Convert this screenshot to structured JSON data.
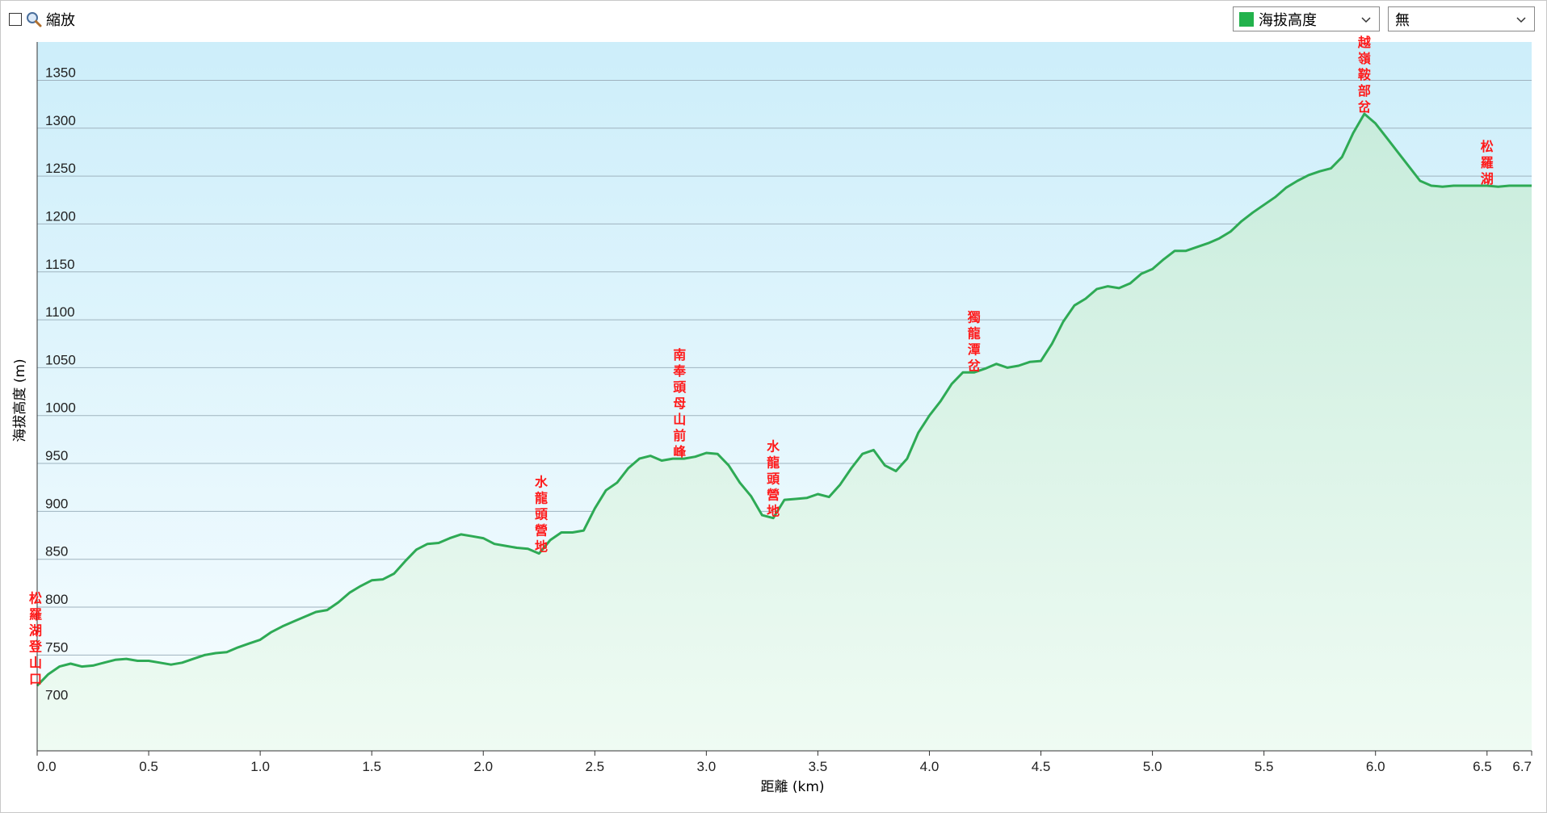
{
  "toolbar": {
    "zoom_label": "縮放",
    "series_select": {
      "value": "海拔高度",
      "color": "#22b24c"
    },
    "second_select": {
      "value": "無"
    }
  },
  "chart_data": {
    "type": "area",
    "title": "",
    "xlabel": "距離 (km)",
    "ylabel": "海拔高度 (m)",
    "xlim": [
      0,
      6.7
    ],
    "ylim": [
      650,
      1390
    ],
    "x_ticks": [
      0.0,
      0.5,
      1.0,
      1.5,
      2.0,
      2.5,
      3.0,
      3.5,
      4.0,
      4.5,
      5.0,
      5.5,
      6.0,
      6.5,
      6.7
    ],
    "x_tick_labels": [
      "0.0",
      "0.5",
      "1.0",
      "1.5",
      "2.0",
      "2.5",
      "3.0",
      "3.5",
      "4.0",
      "4.5",
      "5.0",
      "5.5",
      "6.0",
      "6.5",
      "6.7"
    ],
    "y_ticks": [
      700,
      750,
      800,
      850,
      900,
      950,
      1000,
      1050,
      1100,
      1150,
      1200,
      1250,
      1300,
      1350
    ],
    "y_tick_labels": [
      "700",
      "750",
      "800",
      "850",
      "900",
      "950",
      "1000",
      "1050",
      "1100",
      "1150",
      "1200",
      "1250",
      "1300",
      "1350"
    ],
    "grid": true,
    "line_color": "#2eaa55",
    "series": [
      {
        "name": "海拔高度",
        "x": [
          0.0,
          0.05,
          0.1,
          0.15,
          0.2,
          0.25,
          0.3,
          0.35,
          0.4,
          0.45,
          0.5,
          0.55,
          0.6,
          0.65,
          0.7,
          0.75,
          0.8,
          0.85,
          0.9,
          0.95,
          1.0,
          1.05,
          1.1,
          1.15,
          1.2,
          1.25,
          1.3,
          1.35,
          1.4,
          1.45,
          1.5,
          1.55,
          1.6,
          1.65,
          1.7,
          1.75,
          1.8,
          1.85,
          1.9,
          1.95,
          2.0,
          2.05,
          2.1,
          2.15,
          2.2,
          2.25,
          2.3,
          2.35,
          2.4,
          2.45,
          2.5,
          2.55,
          2.6,
          2.65,
          2.7,
          2.75,
          2.8,
          2.85,
          2.9,
          2.95,
          3.0,
          3.05,
          3.1,
          3.15,
          3.2,
          3.25,
          3.3,
          3.35,
          3.4,
          3.45,
          3.5,
          3.55,
          3.6,
          3.65,
          3.7,
          3.75,
          3.8,
          3.85,
          3.9,
          3.95,
          4.0,
          4.05,
          4.1,
          4.15,
          4.2,
          4.25,
          4.3,
          4.35,
          4.4,
          4.45,
          4.5,
          4.55,
          4.6,
          4.65,
          4.7,
          4.75,
          4.8,
          4.85,
          4.9,
          4.95,
          5.0,
          5.05,
          5.1,
          5.15,
          5.2,
          5.25,
          5.3,
          5.35,
          5.4,
          5.45,
          5.5,
          5.55,
          5.6,
          5.65,
          5.7,
          5.75,
          5.8,
          5.85,
          5.9,
          5.95,
          6.0,
          6.05,
          6.1,
          6.15,
          6.2,
          6.25,
          6.3,
          6.35,
          6.4,
          6.45,
          6.5,
          6.55,
          6.6,
          6.65,
          6.7
        ],
        "values": [
          718,
          730,
          738,
          741,
          738,
          739,
          742,
          745,
          746,
          744,
          744,
          742,
          740,
          742,
          746,
          750,
          752,
          753,
          758,
          762,
          766,
          774,
          780,
          785,
          790,
          795,
          797,
          805,
          815,
          822,
          828,
          829,
          835,
          848,
          860,
          866,
          867,
          872,
          876,
          874,
          872,
          866,
          864,
          862,
          861,
          856,
          870,
          878,
          878,
          880,
          903,
          922,
          930,
          945,
          955,
          958,
          953,
          955,
          955,
          957,
          961,
          960,
          948,
          930,
          916,
          896,
          893,
          912,
          913,
          914,
          918,
          915,
          928,
          945,
          960,
          964,
          948,
          942,
          955,
          982,
          1000,
          1015,
          1033,
          1045,
          1045,
          1049,
          1054,
          1050,
          1052,
          1056,
          1057,
          1075,
          1098,
          1115,
          1122,
          1132,
          1135,
          1133,
          1138,
          1148,
          1153,
          1163,
          1172,
          1172,
          1176,
          1180,
          1185,
          1192,
          1203,
          1212,
          1220,
          1228,
          1238,
          1245,
          1251,
          1255,
          1258,
          1270,
          1295,
          1315,
          1305,
          1290,
          1275,
          1260,
          1245,
          1240,
          1239,
          1240,
          1240,
          1240,
          1240,
          1239,
          1240,
          1240,
          1240
        ]
      }
    ],
    "annotations": [
      {
        "x": 0.0,
        "y": 718,
        "text": "松羅湖登山口"
      },
      {
        "x": 2.26,
        "y": 856,
        "text": "水龍頭營地"
      },
      {
        "x": 2.88,
        "y": 955,
        "text": "南奉頭母山前峰"
      },
      {
        "x": 3.3,
        "y": 893,
        "text": "水龍頭營地"
      },
      {
        "x": 4.2,
        "y": 1045,
        "text": "獨龍潭岔"
      },
      {
        "x": 5.95,
        "y": 1315,
        "text": "越嶺鞍部岔"
      },
      {
        "x": 6.5,
        "y": 1240,
        "text": "松羅湖"
      }
    ]
  }
}
